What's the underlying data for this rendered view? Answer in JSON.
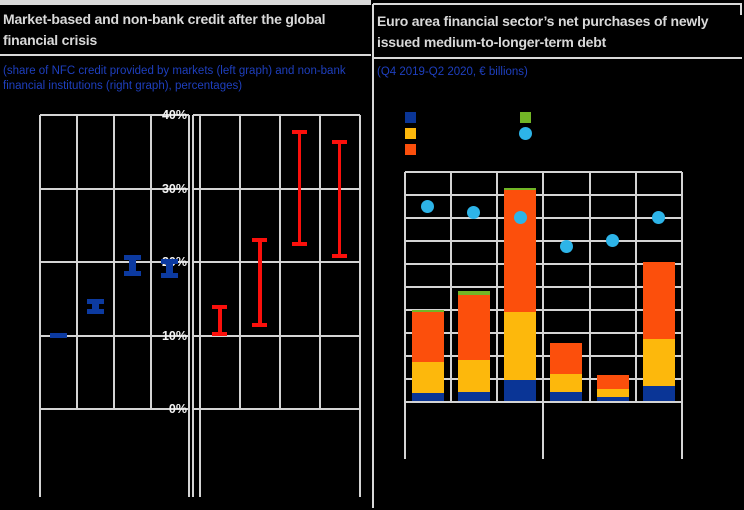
{
  "left_panel": {
    "title": "Market-based and non-bank credit after the global financial crisis",
    "subtitle": "(share of NFC credit provided by markets (left graph) and non-bank financial institutions (right graph), percentages)",
    "chart_data": {
      "type": "bar",
      "subtype": "floating-range-markers-two-subcharts",
      "ylim": [
        0,
        40
      ],
      "gridline_step_pct": 10,
      "y_tick_labels": [
        "40%",
        "30%",
        "20%",
        "10%",
        "0%"
      ],
      "x_tick_labels_visible": false,
      "categories": [
        "",
        "",
        "",
        ""
      ],
      "groups": [
        {
          "name": "markets (left graph)",
          "color": "#0c3aa0",
          "ranges_pct": [
            [
              10.0,
              10.4
            ],
            [
              12.9,
              15.0
            ],
            [
              18.1,
              21.0
            ],
            [
              17.8,
              20.4
            ]
          ]
        },
        {
          "name": "non-bank financial institutions (right graph)",
          "color": "#fb100c",
          "ranges_pct": [
            [
              9.9,
              14.2
            ],
            [
              11.2,
              23.2
            ],
            [
              22.2,
              38.0
            ],
            [
              20.5,
              36.6
            ]
          ]
        }
      ]
    }
  },
  "right_panel": {
    "title": "Euro area financial sector’s net purchases of newly issued medium-to-longer-term debt",
    "subtitle": "(Q4 2019-Q2 2020, € billions)",
    "legend": {
      "labels_visible": false,
      "items": [
        {
          "name": "blue-square",
          "shape": "square",
          "color": "#0a3596"
        },
        {
          "name": "yellow-square",
          "shape": "square",
          "color": "#fdb80c"
        },
        {
          "name": "orange-square",
          "shape": "square",
          "color": "#fc4f0c"
        },
        {
          "name": "green-square",
          "shape": "square",
          "color": "#72b626"
        },
        {
          "name": "cyan-circle",
          "shape": "circle",
          "color": "#2db4e8"
        }
      ]
    },
    "chart_data": {
      "type": "bar",
      "subtype": "stacked-with-dot-overlay",
      "note": "axis and category labels not visible in image; values estimated from unlabeled gridlines, 25 units per gridline",
      "ylim": [
        0,
        250
      ],
      "gridline_step": 25,
      "categories": [
        "",
        "",
        "",
        "",
        "",
        ""
      ],
      "series": [
        {
          "name": "blue",
          "color": "#0a3596",
          "values": [
            9,
            10,
            23,
            10,
            5,
            17
          ]
        },
        {
          "name": "yellow",
          "color": "#fdb80c",
          "values": [
            34,
            35,
            75,
            20,
            9,
            51
          ]
        },
        {
          "name": "orange",
          "color": "#fc4f0c",
          "values": [
            54,
            71,
            132,
            34,
            15,
            84
          ]
        },
        {
          "name": "green",
          "color": "#72b626",
          "values": [
            3,
            4,
            3,
            0,
            0,
            0
          ]
        }
      ],
      "stack_totals": [
        100,
        120,
        233,
        64,
        29,
        152
      ],
      "dot_series": {
        "name": "cyan-dot",
        "color": "#2db4e8",
        "values": [
          212,
          206,
          200,
          169,
          175,
          200
        ]
      }
    }
  },
  "style_colors": {
    "background": "#000000",
    "gridline": "#d4d4d4",
    "panel_border": "#d9d9d9",
    "title_text": "#d9d9d9",
    "subtitle_text": "#1e3fbe",
    "tick_label_text": "#f2f2f2"
  }
}
